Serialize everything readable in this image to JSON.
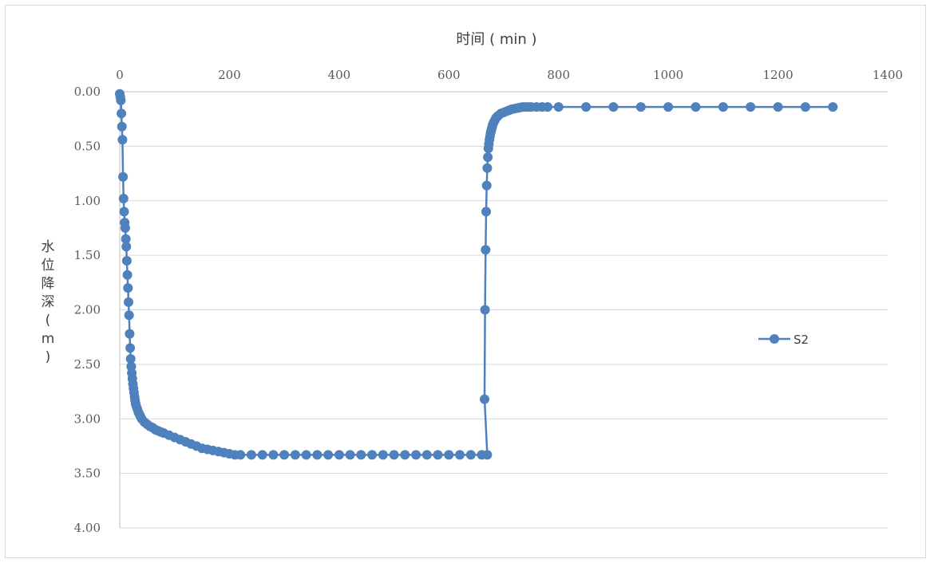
{
  "chart_data": {
    "type": "scatter",
    "xlabel": "时间 ( min )",
    "ylabel_chars": [
      "水",
      "位",
      "降",
      "深",
      "(",
      "m",
      ")"
    ],
    "x_ticks": [
      "0",
      "200",
      "400",
      "600",
      "800",
      "1000",
      "1200",
      "1400"
    ],
    "y_ticks": [
      "0.00",
      "0.50",
      "1.00",
      "1.50",
      "2.00",
      "2.50",
      "3.00",
      "3.50",
      "4.00"
    ],
    "xlim": [
      0,
      1400
    ],
    "ylim": [
      0,
      4
    ],
    "y_inverted": true,
    "x_axis_position": "top",
    "grid": "horizontal",
    "legend_position": "right",
    "series": [
      {
        "name": "S2",
        "color": "#4f81bd",
        "x": [
          0,
          1,
          2,
          3,
          4,
          5,
          6,
          7,
          8,
          9,
          10,
          11,
          12,
          13,
          14,
          15,
          16,
          17,
          18,
          19,
          20,
          21,
          22,
          23,
          24,
          25,
          26,
          27,
          28,
          29,
          30,
          32,
          34,
          36,
          38,
          40,
          45,
          50,
          55,
          60,
          65,
          70,
          75,
          80,
          90,
          100,
          110,
          120,
          130,
          140,
          150,
          160,
          170,
          180,
          190,
          200,
          210,
          220,
          240,
          260,
          280,
          300,
          320,
          340,
          360,
          380,
          400,
          420,
          440,
          460,
          480,
          500,
          520,
          540,
          560,
          580,
          600,
          620,
          640,
          660,
          670,
          665,
          666,
          667,
          668,
          669,
          670,
          671,
          672,
          673,
          674,
          675,
          676,
          677,
          678,
          679,
          680,
          682,
          684,
          686,
          688,
          690,
          695,
          700,
          705,
          710,
          715,
          720,
          725,
          730,
          735,
          740,
          745,
          750,
          760,
          770,
          780,
          800,
          850,
          900,
          950,
          1000,
          1050,
          1100,
          1150,
          1200,
          1250,
          1300
        ],
        "y": [
          0.02,
          0.05,
          0.08,
          0.2,
          0.32,
          0.44,
          0.78,
          0.98,
          1.1,
          1.2,
          1.25,
          1.35,
          1.42,
          1.55,
          1.68,
          1.8,
          1.93,
          2.05,
          2.22,
          2.35,
          2.45,
          2.52,
          2.58,
          2.63,
          2.68,
          2.72,
          2.76,
          2.8,
          2.83,
          2.86,
          2.88,
          2.91,
          2.94,
          2.96,
          2.98,
          3.0,
          3.03,
          3.05,
          3.07,
          3.08,
          3.1,
          3.11,
          3.12,
          3.13,
          3.15,
          3.17,
          3.19,
          3.21,
          3.23,
          3.25,
          3.27,
          3.28,
          3.29,
          3.3,
          3.31,
          3.32,
          3.33,
          3.33,
          3.33,
          3.33,
          3.33,
          3.33,
          3.33,
          3.33,
          3.33,
          3.33,
          3.33,
          3.33,
          3.33,
          3.33,
          3.33,
          3.33,
          3.33,
          3.33,
          3.33,
          3.33,
          3.33,
          3.33,
          3.33,
          3.33,
          3.33,
          2.82,
          2.0,
          1.45,
          1.1,
          0.86,
          0.7,
          0.6,
          0.52,
          0.48,
          0.44,
          0.41,
          0.38,
          0.36,
          0.34,
          0.32,
          0.3,
          0.28,
          0.26,
          0.24,
          0.23,
          0.22,
          0.2,
          0.19,
          0.18,
          0.17,
          0.16,
          0.155,
          0.15,
          0.145,
          0.14,
          0.14,
          0.14,
          0.14,
          0.14,
          0.14,
          0.14,
          0.14,
          0.14,
          0.14,
          0.14,
          0.14,
          0.14,
          0.14,
          0.14,
          0.14,
          0.14,
          0.14
        ]
      }
    ]
  }
}
